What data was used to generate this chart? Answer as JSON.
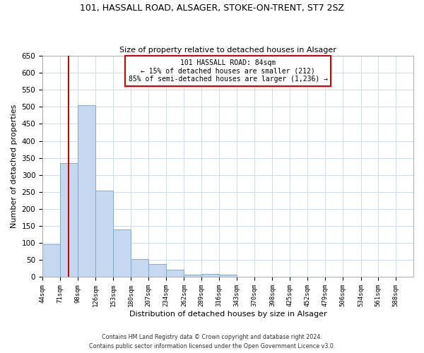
{
  "title1": "101, HASSALL ROAD, ALSAGER, STOKE-ON-TRENT, ST7 2SZ",
  "title2": "Size of property relative to detached houses in Alsager",
  "xlabel": "Distribution of detached houses by size in Alsager",
  "ylabel": "Number of detached properties",
  "bin_labels": [
    "44sqm",
    "71sqm",
    "98sqm",
    "126sqm",
    "153sqm",
    "180sqm",
    "207sqm",
    "234sqm",
    "262sqm",
    "289sqm",
    "316sqm",
    "343sqm",
    "370sqm",
    "398sqm",
    "425sqm",
    "452sqm",
    "479sqm",
    "506sqm",
    "534sqm",
    "561sqm",
    "588sqm"
  ],
  "bin_edges": [
    44,
    71,
    98,
    126,
    153,
    180,
    207,
    234,
    262,
    289,
    316,
    343,
    370,
    398,
    425,
    452,
    479,
    506,
    534,
    561,
    588,
    615
  ],
  "bar_heights": [
    97,
    335,
    505,
    255,
    140,
    53,
    38,
    22,
    7,
    10,
    7,
    0,
    0,
    0,
    0,
    2,
    0,
    0,
    0,
    0,
    2
  ],
  "bar_color": "#c5d8f0",
  "bar_edgecolor": "#7aadd4",
  "property_line_x": 84,
  "property_line_color": "#cc0000",
  "annotation_text": "101 HASSALL ROAD: 84sqm\n← 15% of detached houses are smaller (212)\n85% of semi-detached houses are larger (1,236) →",
  "annotation_box_edgecolor": "#cc0000",
  "ylim": [
    0,
    650
  ],
  "yticks": [
    0,
    50,
    100,
    150,
    200,
    250,
    300,
    350,
    400,
    450,
    500,
    550,
    600,
    650
  ],
  "footnote1": "Contains HM Land Registry data © Crown copyright and database right 2024.",
  "footnote2": "Contains public sector information licensed under the Open Government Licence v3.0.",
  "bg_color": "#ffffff",
  "grid_color": "#c8d8e8"
}
